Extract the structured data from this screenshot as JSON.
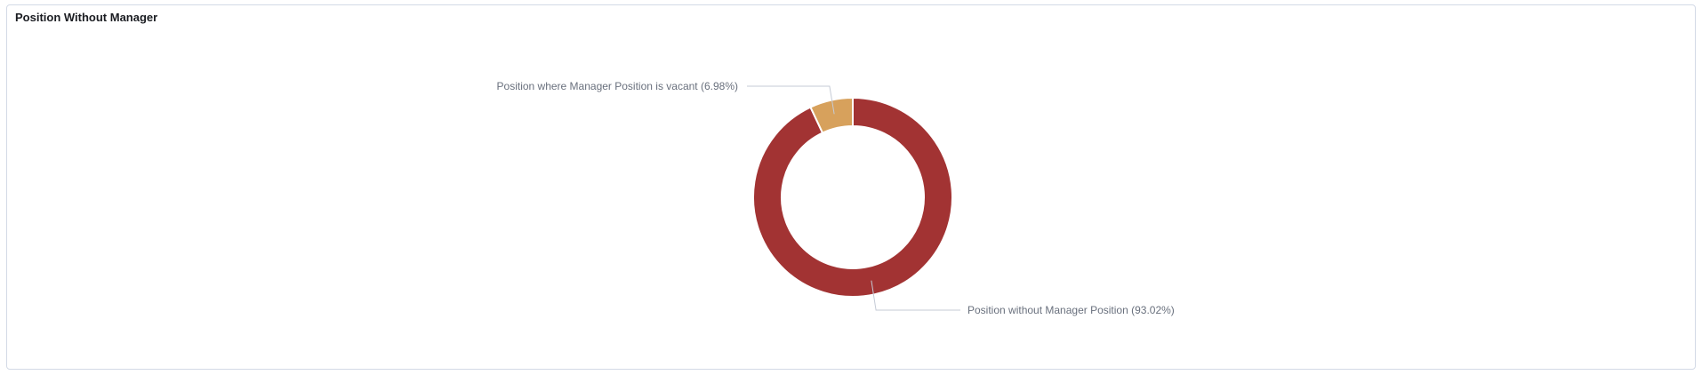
{
  "panel": {
    "title": "Position Without Manager"
  },
  "chart_data": {
    "type": "pie",
    "donut": true,
    "title": "Position Without Manager",
    "slices": [
      {
        "label": "Position without Manager Position",
        "value": 93.02,
        "display": "Position without Manager Position (93.02%)",
        "color": "#a23333"
      },
      {
        "label": "Position where Manager Position is vacant",
        "value": 6.98,
        "display": "Position where Manager Position is vacant (6.98%)",
        "color": "#d7a15c"
      }
    ]
  }
}
